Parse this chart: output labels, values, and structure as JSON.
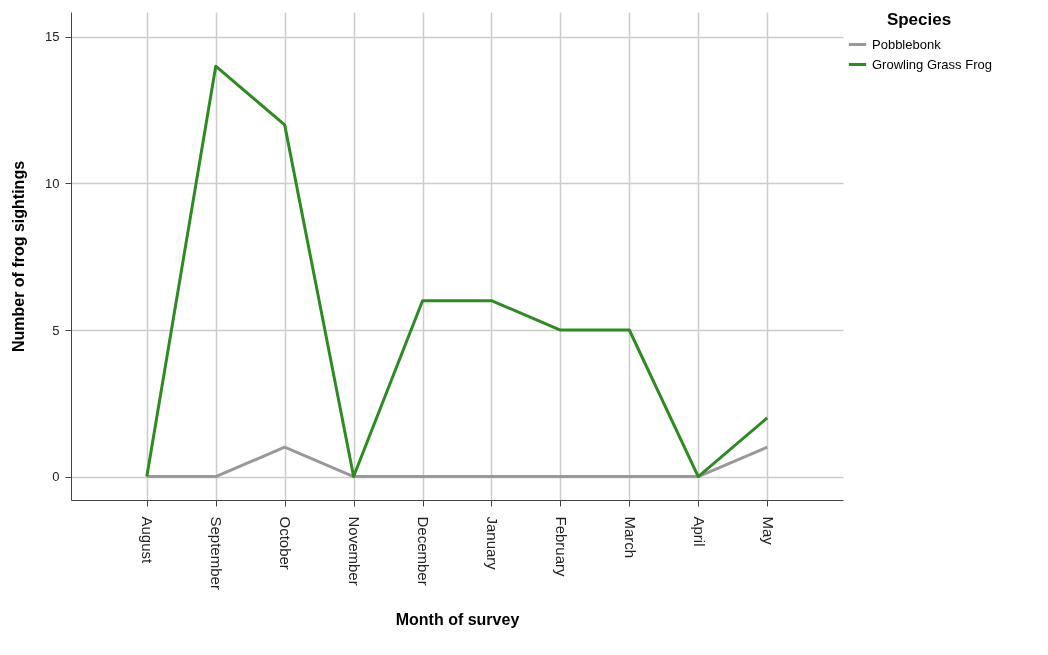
{
  "chart_data": {
    "type": "line",
    "xlabel": "Month of survey",
    "ylabel": "Number of frog sightings",
    "legend_title": "Species",
    "categories": [
      "August",
      "September",
      "October",
      "November",
      "December",
      "January",
      "February",
      "March",
      "April",
      "May"
    ],
    "series": [
      {
        "name": "Pobblebonk",
        "color": "#999999",
        "values": [
          0,
          0,
          1,
          0,
          0,
          0,
          0,
          0,
          0,
          1
        ]
      },
      {
        "name": "Growling Grass Frog",
        "color": "#2e8b22",
        "values": [
          0,
          14,
          12,
          0,
          6,
          6,
          5,
          5,
          0,
          2
        ]
      }
    ],
    "ylim": [
      -0.8,
      15.85
    ],
    "yticks": [
      0,
      5,
      10,
      15
    ],
    "grid": true,
    "legend": "top right",
    "marker": "none",
    "line_style": "solid"
  }
}
